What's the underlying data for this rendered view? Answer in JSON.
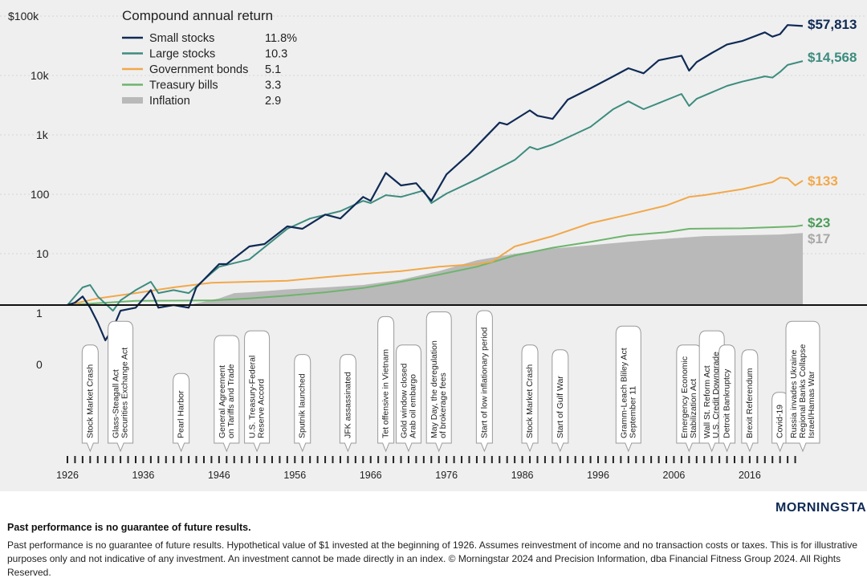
{
  "chart_data": {
    "type": "line",
    "y_scale": "log",
    "y_tick_labels": [
      "$100k",
      "10k",
      "1k",
      "100",
      "10",
      "1",
      "0"
    ],
    "x_tick_labels": [
      "1926",
      "1936",
      "1946",
      "1956",
      "1966",
      "1976",
      "1986",
      "1996",
      "2006",
      "2016"
    ],
    "x_range": [
      1926,
      2023
    ],
    "legend": {
      "title": "Compound annual return",
      "placement": "top-left",
      "entries": [
        {
          "name": "Small stocks",
          "return": "11.8%",
          "color": "#0f2a55"
        },
        {
          "name": "Large stocks",
          "return": "10.3",
          "color": "#3d8c7f"
        },
        {
          "name": "Government bonds",
          "return": "5.1",
          "color": "#f2a84a"
        },
        {
          "name": "Treasury bills",
          "return": "3.3",
          "color": "#6db56d"
        },
        {
          "name": "Inflation",
          "return": "2.9",
          "color": "#b9b9b9"
        }
      ]
    },
    "series": [
      {
        "name": "Small stocks",
        "end_label": "$57,813",
        "color": "#0f2a55",
        "x": [
          1926,
          1927,
          1928,
          1929,
          1930,
          1931,
          1932,
          1933,
          1935,
          1937,
          1938,
          1940,
          1942,
          1943,
          1946,
          1947,
          1950,
          1952,
          1955,
          1957,
          1960,
          1962,
          1965,
          1966,
          1968,
          1970,
          1972,
          1974,
          1976,
          1979,
          1983,
          1984,
          1987,
          1988,
          1990,
          1992,
          1995,
          1998,
          2000,
          2002,
          2004,
          2007,
          2008,
          2009,
          2011,
          2013,
          2015,
          2018,
          2019,
          2020,
          2021,
          2023
        ],
        "y": [
          1.0,
          1.1,
          1.4,
          0.9,
          0.5,
          0.25,
          0.4,
          0.8,
          0.9,
          1.8,
          0.9,
          1.0,
          0.9,
          2.0,
          5,
          5,
          10,
          11,
          22,
          20,
          35,
          30,
          70,
          60,
          180,
          110,
          120,
          60,
          170,
          380,
          1300,
          1200,
          2100,
          1700,
          1500,
          3200,
          5000,
          8000,
          11000,
          9000,
          15000,
          18000,
          10000,
          14000,
          20000,
          28000,
          32000,
          45000,
          38000,
          42000,
          60000,
          57813
        ]
      },
      {
        "name": "Large stocks",
        "end_label": "$14,568",
        "color": "#3d8c7f",
        "x": [
          1926,
          1928,
          1929,
          1930,
          1932,
          1933,
          1935,
          1937,
          1938,
          1940,
          1942,
          1945,
          1946,
          1950,
          1955,
          1958,
          1962,
          1965,
          1966,
          1968,
          1970,
          1973,
          1974,
          1976,
          1980,
          1985,
          1987,
          1988,
          1990,
          1995,
          1998,
          2000,
          2002,
          2004,
          2007,
          2008,
          2009,
          2013,
          2015,
          2018,
          2019,
          2020,
          2021,
          2023
        ],
        "y": [
          1.0,
          2.0,
          2.2,
          1.4,
          0.8,
          1.2,
          1.8,
          2.5,
          1.6,
          1.8,
          1.6,
          3.5,
          4.5,
          6,
          20,
          30,
          40,
          60,
          55,
          75,
          70,
          90,
          55,
          80,
          140,
          300,
          500,
          450,
          550,
          1100,
          2200,
          3000,
          2200,
          2800,
          4000,
          2500,
          3300,
          5500,
          6500,
          8000,
          7600,
          9500,
          12500,
          14568
        ]
      },
      {
        "name": "Government bonds",
        "end_label": "$133",
        "color": "#f2a84a",
        "x": [
          1926,
          1930,
          1935,
          1940,
          1945,
          1950,
          1955,
          1960,
          1965,
          1970,
          1975,
          1980,
          1982,
          1985,
          1990,
          1995,
          2000,
          2005,
          2008,
          2010,
          2015,
          2019,
          2020,
          2021,
          2022,
          2023
        ],
        "y": [
          1.0,
          1.3,
          1.6,
          2.0,
          2.4,
          2.5,
          2.6,
          3.0,
          3.4,
          3.8,
          4.5,
          5.0,
          5.5,
          10,
          15,
          25,
          35,
          50,
          70,
          75,
          95,
          125,
          150,
          145,
          110,
          133
        ]
      },
      {
        "name": "Treasury bills",
        "end_label": "$23",
        "color": "#6db56d",
        "x": [
          1926,
          1935,
          1940,
          1945,
          1950,
          1955,
          1960,
          1965,
          1970,
          1975,
          1980,
          1985,
          1990,
          1995,
          2000,
          2005,
          2008,
          2010,
          2015,
          2020,
          2022,
          2023
        ],
        "y": [
          1.0,
          1.18,
          1.19,
          1.2,
          1.3,
          1.45,
          1.65,
          1.95,
          2.5,
          3.3,
          4.5,
          7,
          9.5,
          12,
          15.5,
          17.5,
          20,
          20.2,
          20.4,
          21.5,
          22,
          23
        ]
      },
      {
        "name": "Inflation",
        "end_label": "$17",
        "color": "#b9b9b9",
        "x": [
          1926,
          1930,
          1933,
          1935,
          1940,
          1942,
          1946,
          1948,
          1950,
          1955,
          1960,
          1965,
          1970,
          1975,
          1980,
          1985,
          1990,
          1995,
          2000,
          2005,
          2010,
          2015,
          2020,
          2023
        ],
        "y": [
          1.0,
          0.95,
          0.75,
          0.8,
          0.85,
          1.0,
          1.3,
          1.6,
          1.65,
          1.85,
          2.0,
          2.2,
          2.7,
          3.8,
          5.8,
          7.5,
          9.2,
          10.5,
          12.0,
          13.5,
          15.0,
          15.5,
          16.0,
          17.0
        ]
      }
    ],
    "events": [
      {
        "label": "Stock Market Crash",
        "year": 1929
      },
      {
        "label": "Glass-Steagall Act\nSecurities Exchange Act",
        "year": 1933
      },
      {
        "label": "Pearl Harbor",
        "year": 1941
      },
      {
        "label": "General Agreement\non Tariffs and Trade",
        "year": 1947
      },
      {
        "label": "U.S. Treasury-Federal\nReserve Accord",
        "year": 1951
      },
      {
        "label": "Sputnik launched",
        "year": 1957
      },
      {
        "label": "JFK assassinated",
        "year": 1963
      },
      {
        "label": "Tet offensive in Vietnam",
        "year": 1968
      },
      {
        "label": "Gold window closed\nArab oil embargo",
        "year": 1971
      },
      {
        "label": "May Day, the deregulation\nof brokerage fees",
        "year": 1975
      },
      {
        "label": "Start of low inflationary period",
        "year": 1981
      },
      {
        "label": "Stock Market Crash",
        "year": 1987
      },
      {
        "label": "Start of Gulf War",
        "year": 1991
      },
      {
        "label": "Gramm-Leach Bliley Act\nSeptember 11",
        "year": 2000
      },
      {
        "label": "Emergency Economic\nStabilization Act",
        "year": 2008
      },
      {
        "label": "Wall St. Reform Act\nU.S. Credit Downgrade",
        "year": 2011
      },
      {
        "label": "Detroit Bankruptcy",
        "year": 2013
      },
      {
        "label": "Brexit Referendum",
        "year": 2016
      },
      {
        "label": "Covid-19",
        "year": 2020
      },
      {
        "label": "Russia invades Ukraine\nRegional Banks Collapse\nIsrael/Hamas War",
        "year": 2023
      }
    ]
  },
  "logo": {
    "text": "MORNINGSTAR®"
  },
  "footer": {
    "title": "Past performance is no guarantee of future results.",
    "body": "Past performance is no guarantee of future results. Hypothetical value of $1 invested at the beginning of 1926. Assumes reinvestment of income and no transaction costs or taxes. This is for illustrative purposes only and not indicative of any investment. An investment cannot be made directly in an index. © Morningstar 2024 and Precision Information, dba Financial Fitness Group 2024. All Rights Reserved."
  }
}
